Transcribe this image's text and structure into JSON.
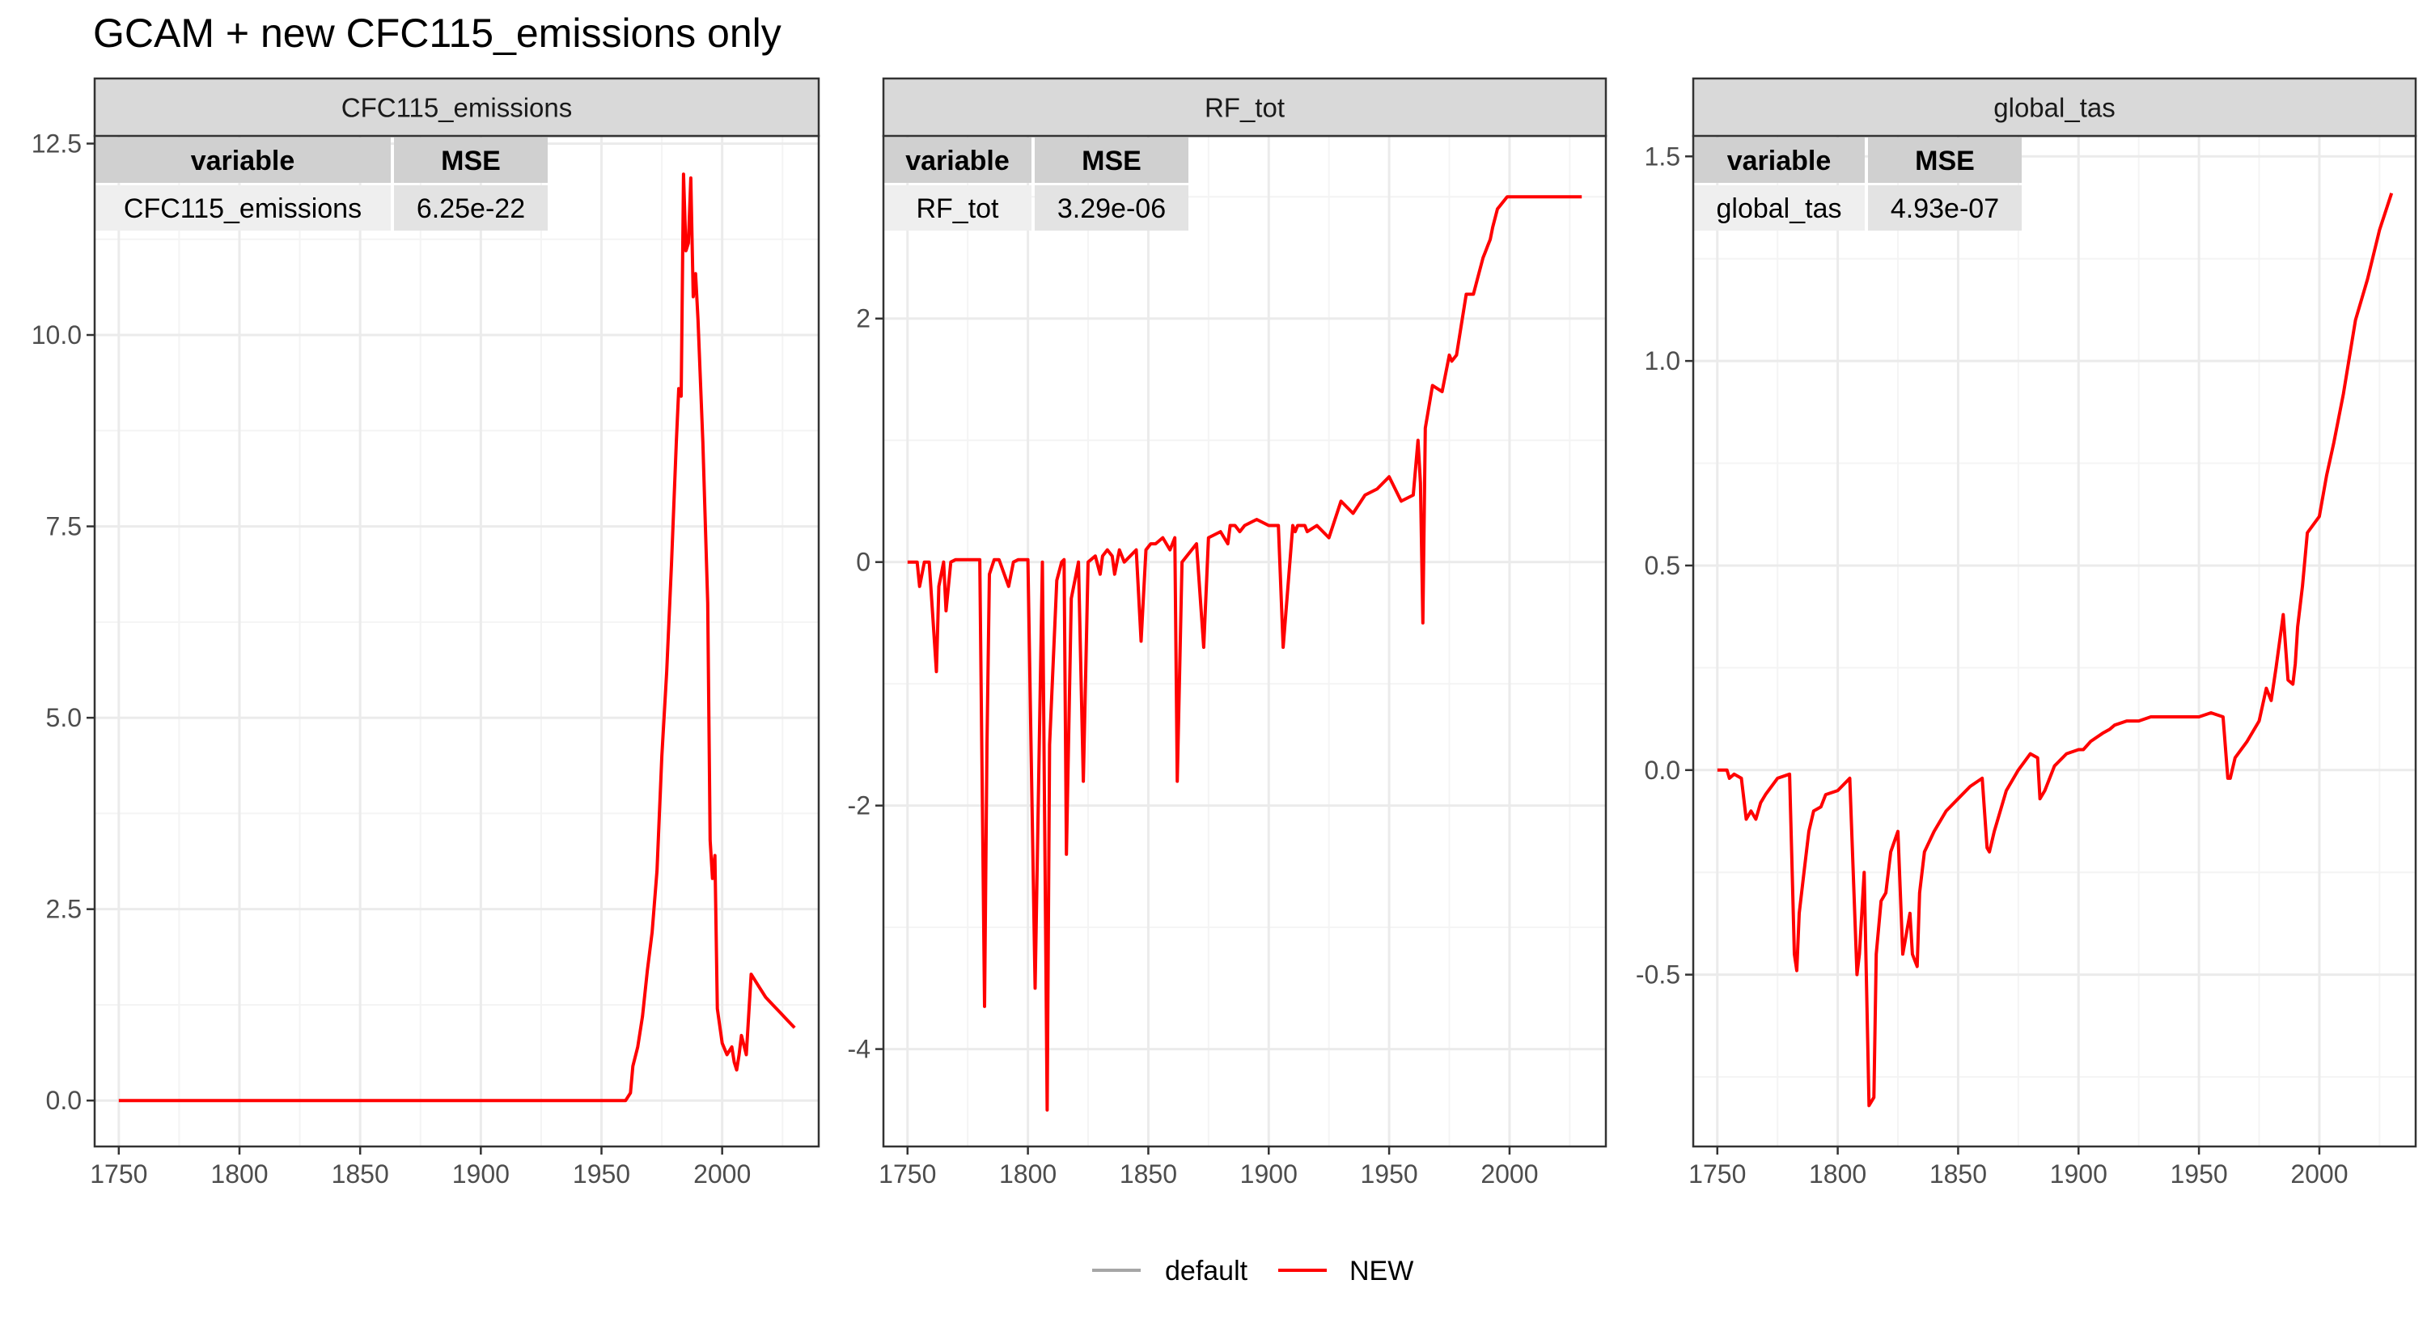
{
  "title": "GCAM + new CFC115_emissions only",
  "colors": {
    "default": "#a6a6a6",
    "new": "#ff0000",
    "strip": "#d9d9d9",
    "grid_major": "#ebebeb",
    "grid_minor": "#f4f4f4",
    "panel_border": "#333333"
  },
  "legend": {
    "items": [
      {
        "label": "default",
        "color": "#a6a6a6"
      },
      {
        "label": "NEW",
        "color": "#ff0000"
      }
    ],
    "position": "bottom"
  },
  "chart_data": [
    {
      "type": "line",
      "title": "CFC115_emissions",
      "xlim": [
        1740,
        2040
      ],
      "ylim": [
        -0.6,
        12.6
      ],
      "x_ticks": [
        1750,
        1800,
        1850,
        1900,
        1950,
        2000
      ],
      "y_ticks": [
        0.0,
        2.5,
        5.0,
        7.5,
        10.0,
        12.5
      ],
      "y_tick_labels": [
        "0.0",
        "2.5",
        "5.0",
        "7.5",
        "10.0",
        "12.5"
      ],
      "mse_table": {
        "headers": [
          "variable",
          "MSE"
        ],
        "row": [
          "CFC115_emissions",
          "6.25e-22"
        ]
      },
      "series": [
        {
          "name": "NEW",
          "x": [
            1750,
            1960,
            1962,
            1963,
            1965,
            1967,
            1969,
            1971,
            1973,
            1975,
            1977,
            1979,
            1981,
            1982,
            1983,
            1984,
            1985,
            1986,
            1987,
            1988,
            1989,
            1990,
            1992,
            1994,
            1995,
            1996,
            1997,
            1998,
            2000,
            2002,
            2004,
            2005,
            2006,
            2007,
            2008,
            2010,
            2012,
            2015,
            2018,
            2021,
            2024,
            2027,
            2030
          ],
          "y": [
            0.0,
            0.0,
            0.1,
            0.45,
            0.7,
            1.1,
            1.7,
            2.2,
            3.0,
            4.5,
            5.6,
            7.0,
            8.6,
            9.3,
            9.2,
            12.1,
            11.1,
            11.2,
            12.05,
            10.5,
            10.8,
            10.2,
            8.6,
            6.5,
            3.4,
            2.9,
            3.2,
            1.2,
            0.75,
            0.6,
            0.7,
            0.5,
            0.4,
            0.6,
            0.85,
            0.6,
            1.65,
            1.5,
            1.35,
            1.25,
            1.15,
            1.05,
            0.95
          ]
        }
      ]
    },
    {
      "type": "line",
      "title": "RF_tot",
      "xlim": [
        1740,
        2040
      ],
      "ylim": [
        -4.8,
        3.5
      ],
      "x_ticks": [
        1750,
        1800,
        1850,
        1900,
        1950,
        2000
      ],
      "y_ticks": [
        -4,
        -2,
        0,
        2
      ],
      "y_tick_labels": [
        "-4",
        "-2",
        "0",
        "2"
      ],
      "mse_table": {
        "headers": [
          "variable",
          "MSE"
        ],
        "row": [
          "RF_tot",
          "3.29e-06"
        ]
      },
      "series": [
        {
          "name": "NEW",
          "x": [
            1750,
            1754,
            1755,
            1757,
            1759,
            1762,
            1763,
            1765,
            1766,
            1768,
            1770,
            1775,
            1780,
            1782,
            1783,
            1784,
            1786,
            1788,
            1792,
            1794,
            1796,
            1800,
            1803,
            1806,
            1808,
            1809,
            1812,
            1814,
            1815,
            1816,
            1818,
            1821,
            1823,
            1825,
            1828,
            1830,
            1831,
            1833,
            1835,
            1836,
            1838,
            1840,
            1845,
            1847,
            1849,
            1851,
            1853,
            1856,
            1859,
            1861,
            1862,
            1864,
            1870,
            1873,
            1875,
            1880,
            1883,
            1884,
            1886,
            1888,
            1890,
            1895,
            1900,
            1902,
            1904,
            1906,
            1910,
            1911,
            1912,
            1915,
            1916,
            1920,
            1925,
            1930,
            1935,
            1940,
            1945,
            1950,
            1955,
            1960,
            1962,
            1963,
            1964,
            1965,
            1968,
            1972,
            1975,
            1976,
            1978,
            1980,
            1982,
            1985,
            1987,
            1989,
            1990,
            1991,
            1992,
            1993,
            1995,
            1997,
            1999,
            2002,
            2005,
            2008,
            2011,
            2013,
            2017,
            2021,
            2025,
            2030
          ],
          "y": [
            0.0,
            0.0,
            -0.2,
            0.0,
            0.0,
            -0.9,
            -0.2,
            0.0,
            -0.4,
            0.0,
            0.02,
            0.02,
            0.02,
            -3.65,
            -1.5,
            -0.1,
            0.02,
            0.02,
            -0.2,
            0.0,
            0.02,
            0.02,
            -3.5,
            0.0,
            -4.5,
            -1.5,
            -0.15,
            0.0,
            0.02,
            -2.4,
            -0.3,
            0.0,
            -1.8,
            0.0,
            0.05,
            -0.1,
            0.05,
            0.1,
            0.05,
            -0.1,
            0.1,
            0.0,
            0.1,
            -0.65,
            0.1,
            0.15,
            0.15,
            0.2,
            0.1,
            0.2,
            -1.8,
            0.0,
            0.15,
            -0.7,
            0.2,
            0.25,
            0.15,
            0.3,
            0.3,
            0.25,
            0.3,
            0.35,
            0.3,
            0.3,
            0.3,
            -0.7,
            0.3,
            0.25,
            0.3,
            0.3,
            0.25,
            0.3,
            0.2,
            0.5,
            0.4,
            0.55,
            0.6,
            0.7,
            0.5,
            0.55,
            1.0,
            0.65,
            -0.5,
            1.1,
            1.45,
            1.4,
            1.7,
            1.65,
            1.7,
            1.95,
            2.2,
            2.2,
            2.35,
            2.5,
            2.55,
            2.6,
            2.65,
            2.75,
            2.9,
            2.95,
            3.0,
            3.0,
            3.0,
            3.0,
            3.0,
            3.0,
            3.0,
            3.0,
            3.0,
            3.0
          ]
        }
      ]
    },
    {
      "type": "line",
      "title": "global_tas",
      "xlim": [
        1740,
        2040
      ],
      "ylim": [
        -0.92,
        1.55
      ],
      "x_ticks": [
        1750,
        1800,
        1850,
        1900,
        1950,
        2000
      ],
      "y_ticks": [
        -0.5,
        0.0,
        0.5,
        1.0,
        1.5
      ],
      "y_tick_labels": [
        "-0.5",
        "0.0",
        "0.5",
        "1.0",
        "1.5"
      ],
      "mse_table": {
        "headers": [
          "variable",
          "MSE"
        ],
        "row": [
          "global_tas",
          "4.93e-07"
        ]
      },
      "series": [
        {
          "name": "NEW",
          "x": [
            1750,
            1754,
            1755,
            1757,
            1760,
            1762,
            1764,
            1766,
            1768,
            1770,
            1775,
            1780,
            1782,
            1783,
            1784,
            1786,
            1788,
            1790,
            1793,
            1795,
            1800,
            1805,
            1808,
            1809,
            1811,
            1813,
            1815,
            1816,
            1818,
            1820,
            1822,
            1825,
            1827,
            1830,
            1831,
            1833,
            1834,
            1836,
            1840,
            1845,
            1850,
            1855,
            1860,
            1862,
            1863,
            1865,
            1870,
            1875,
            1880,
            1883,
            1884,
            1886,
            1890,
            1895,
            1900,
            1902,
            1905,
            1910,
            1913,
            1915,
            1920,
            1925,
            1930,
            1940,
            1945,
            1950,
            1955,
            1960,
            1962,
            1963,
            1965,
            1970,
            1975,
            1978,
            1980,
            1982,
            1985,
            1987,
            1989,
            1990,
            1991,
            1993,
            1995,
            2000,
            2003,
            2006,
            2010,
            2015,
            2020,
            2025,
            2030
          ],
          "y": [
            0.0,
            0.0,
            -0.02,
            -0.01,
            -0.02,
            -0.12,
            -0.1,
            -0.12,
            -0.08,
            -0.06,
            -0.02,
            -0.01,
            -0.45,
            -0.49,
            -0.35,
            -0.25,
            -0.15,
            -0.1,
            -0.09,
            -0.06,
            -0.05,
            -0.02,
            -0.5,
            -0.45,
            -0.25,
            -0.82,
            -0.8,
            -0.45,
            -0.32,
            -0.3,
            -0.2,
            -0.15,
            -0.45,
            -0.35,
            -0.45,
            -0.48,
            -0.3,
            -0.2,
            -0.15,
            -0.1,
            -0.07,
            -0.04,
            -0.02,
            -0.19,
            -0.2,
            -0.15,
            -0.05,
            0.0,
            0.04,
            0.03,
            -0.07,
            -0.05,
            0.01,
            0.04,
            0.05,
            0.05,
            0.07,
            0.09,
            0.1,
            0.11,
            0.12,
            0.12,
            0.13,
            0.13,
            0.13,
            0.13,
            0.14,
            0.13,
            -0.02,
            -0.02,
            0.03,
            0.07,
            0.12,
            0.2,
            0.17,
            0.25,
            0.38,
            0.22,
            0.21,
            0.26,
            0.35,
            0.45,
            0.58,
            0.62,
            0.72,
            0.8,
            0.92,
            1.1,
            1.2,
            1.32,
            1.41
          ]
        }
      ]
    }
  ]
}
